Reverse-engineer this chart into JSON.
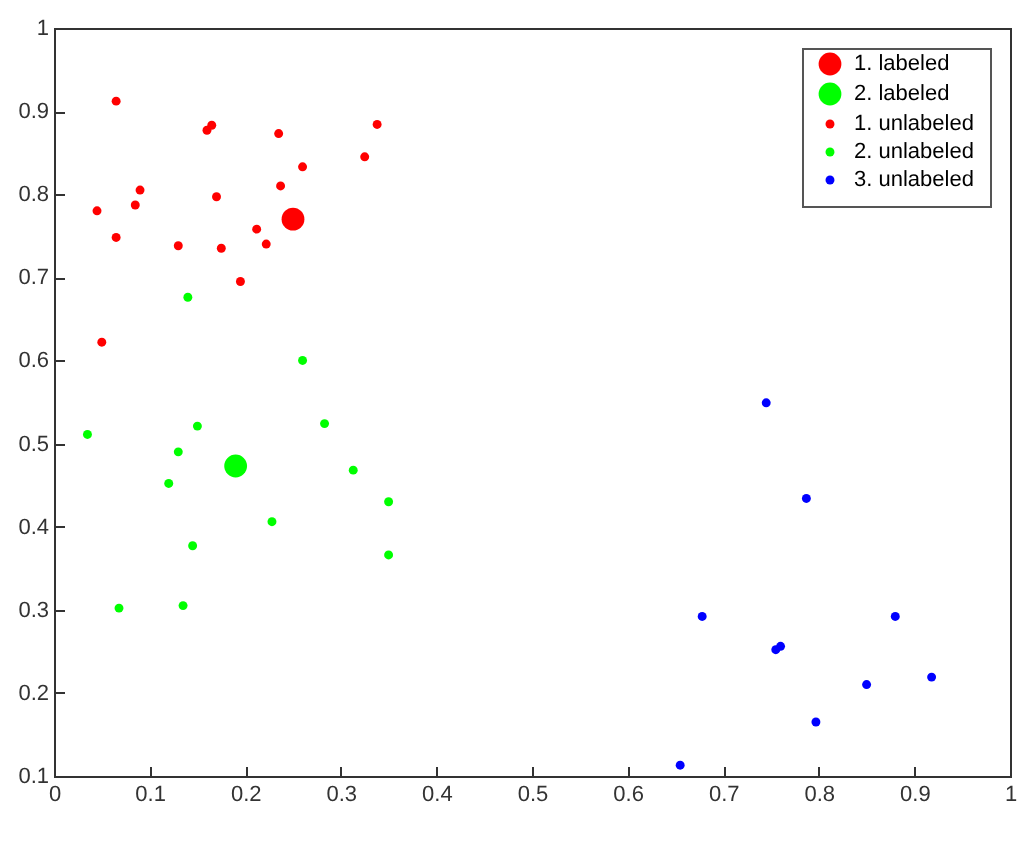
{
  "chart_data": {
    "type": "scatter",
    "xlim": [
      0,
      1
    ],
    "ylim": [
      0.1,
      1
    ],
    "xticks": [
      0,
      0.1,
      0.2,
      0.3,
      0.4,
      0.5,
      0.6,
      0.7,
      0.8,
      0.9,
      1
    ],
    "yticks": [
      0.1,
      0.2,
      0.3,
      0.4,
      0.5,
      0.6,
      0.7,
      0.8,
      0.9,
      1
    ],
    "grid": false,
    "legend": "top right",
    "marker": "circle",
    "series": [
      {
        "name": "1. labeled",
        "color": "#ff0000",
        "x": [
          0.25
        ],
        "values": [
          0.77
        ]
      },
      {
        "name": "2. labeled",
        "color": "#00ff00",
        "x": [
          0.19
        ],
        "values": [
          0.473
        ]
      },
      {
        "name": "1. unlabeled",
        "color": "#ff0000",
        "x": [
          0.065,
          0.045,
          0.05,
          0.065,
          0.085,
          0.09,
          0.13,
          0.16,
          0.165,
          0.17,
          0.175,
          0.195,
          0.212,
          0.222,
          0.235,
          0.237,
          0.26,
          0.325,
          0.338
        ],
        "values": [
          0.912,
          0.78,
          0.622,
          0.748,
          0.787,
          0.805,
          0.738,
          0.877,
          0.883,
          0.797,
          0.735,
          0.695,
          0.758,
          0.74,
          0.873,
          0.81,
          0.833,
          0.845,
          0.884
        ]
      },
      {
        "name": "2. unlabeled",
        "color": "#00ff00",
        "x": [
          0.14,
          0.26,
          0.035,
          0.15,
          0.13,
          0.12,
          0.283,
          0.313,
          0.35,
          0.228,
          0.145,
          0.35,
          0.068,
          0.135
        ],
        "values": [
          0.676,
          0.6,
          0.511,
          0.521,
          0.49,
          0.452,
          0.524,
          0.468,
          0.43,
          0.406,
          0.377,
          0.366,
          0.302,
          0.305
        ]
      },
      {
        "name": "3. unlabeled",
        "color": "#0000ff",
        "x": [
          0.745,
          0.787,
          0.678,
          0.755,
          0.76,
          0.88,
          0.85,
          0.918,
          0.797,
          0.655
        ],
        "values": [
          0.549,
          0.434,
          0.292,
          0.252,
          0.256,
          0.292,
          0.21,
          0.219,
          0.165,
          0.113
        ]
      }
    ]
  }
}
